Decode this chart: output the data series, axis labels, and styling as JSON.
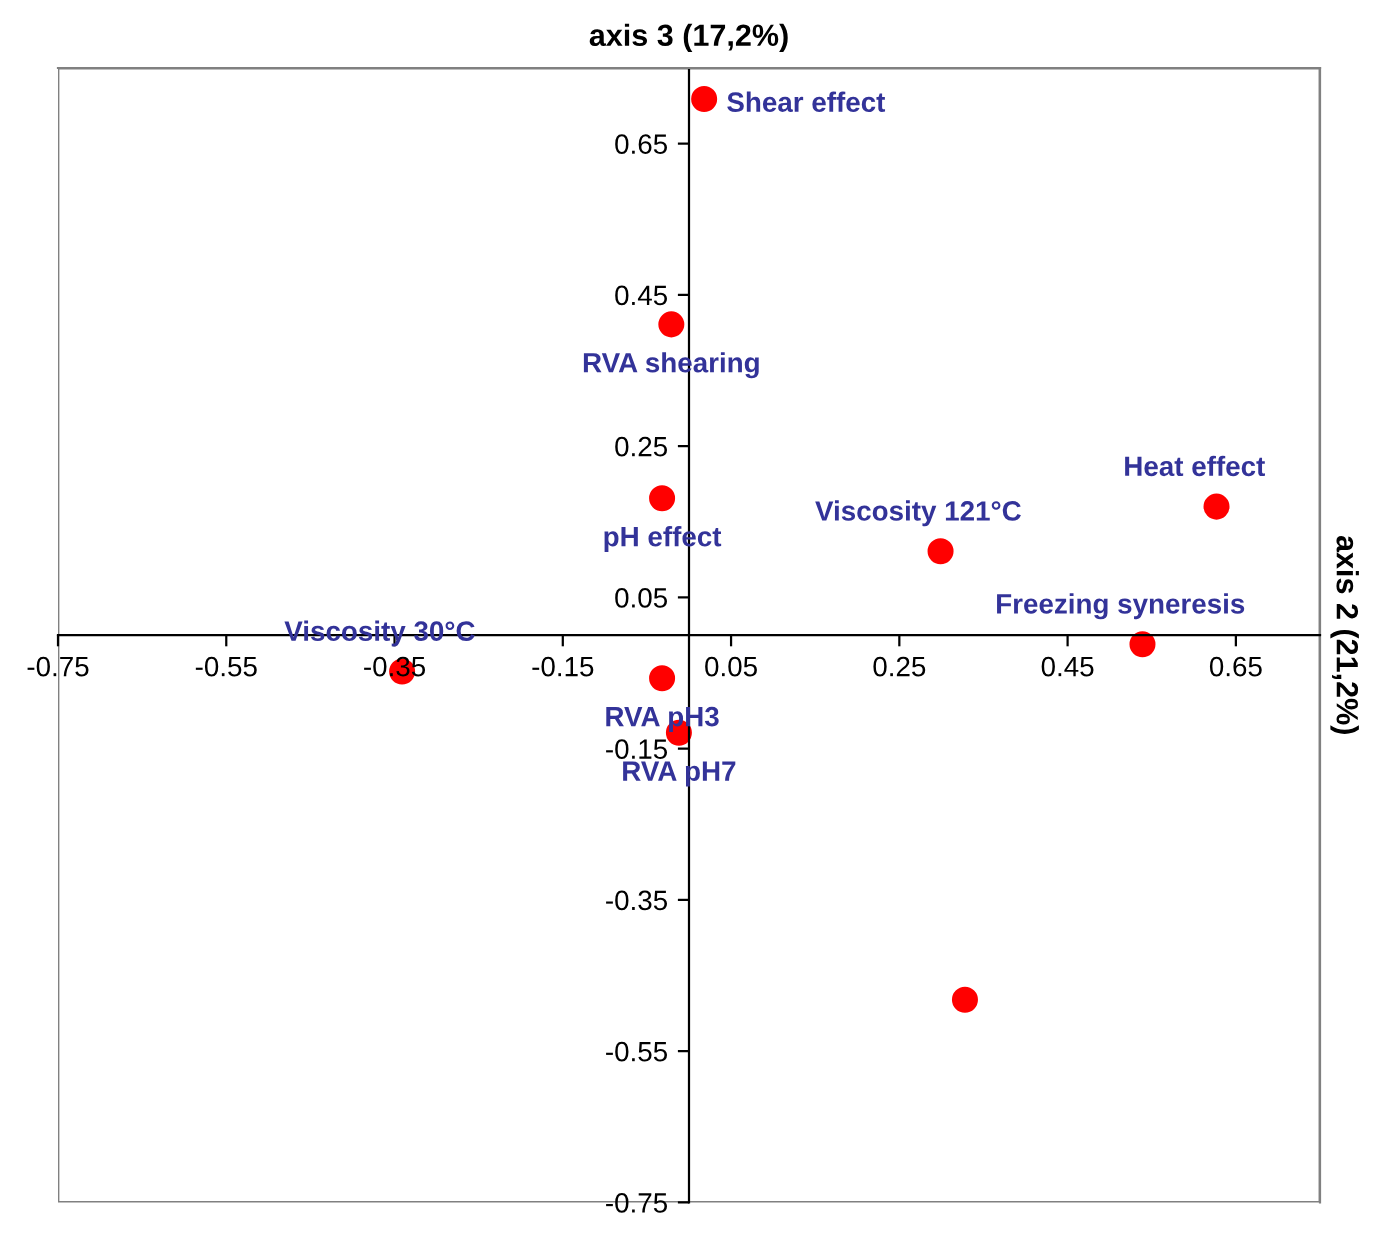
{
  "chart_data": {
    "type": "scatter",
    "xlabel": "axis 3 (17,2%)",
    "ylabel": "axis 2 (21,2%)",
    "x": [
      0.018,
      -0.021,
      -0.032,
      0.299,
      0.627,
      0.539,
      -0.341,
      -0.032,
      -0.012,
      0.328
    ],
    "series": [
      {
        "color": "#ff0000",
        "values": [
          0.709,
          0.411,
          0.181,
          0.111,
          0.17,
          -0.012,
          -0.048,
          -0.057,
          -0.129,
          -0.482
        ]
      }
    ],
    "annotations": [
      {
        "text": "Shear effect",
        "x": 0.018,
        "y": 0.709
      },
      {
        "text": "RVA shearing",
        "x": -0.021,
        "y": 0.411
      },
      {
        "text": "pH effect",
        "x": -0.032,
        "y": 0.181
      },
      {
        "text": "Viscosity 121°C",
        "x": 0.299,
        "y": 0.111
      },
      {
        "text": "Heat effect",
        "x": 0.627,
        "y": 0.17
      },
      {
        "text": "Freezing syneresis",
        "x": 0.539,
        "y": -0.012
      },
      {
        "text": "Viscosity 30°C",
        "x": -0.341,
        "y": -0.048
      },
      {
        "text": "RVA pH3",
        "x": -0.032,
        "y": -0.057
      },
      {
        "text": "RVA pH7",
        "x": -0.012,
        "y": -0.129
      }
    ],
    "xlim": [
      -0.75,
      0.75
    ],
    "ylim": [
      -0.75,
      0.75
    ],
    "xticks": [
      -0.75,
      -0.55,
      -0.35,
      -0.15,
      0.05,
      0.25,
      0.45,
      0.65
    ],
    "yticks": [
      -0.75,
      -0.55,
      -0.35,
      -0.15,
      0.05,
      0.25,
      0.45,
      0.65
    ],
    "grid": false,
    "legend": false,
    "marker": "circle"
  }
}
